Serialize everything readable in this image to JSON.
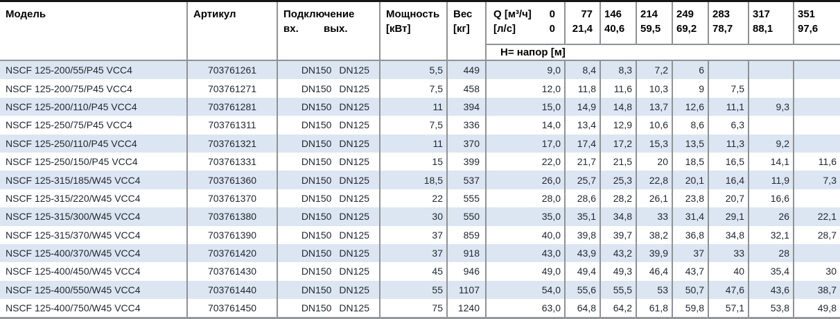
{
  "table": {
    "header": {
      "model": "Модель",
      "article": "Артикул",
      "connection": "Подключение",
      "conn_in": "вх.",
      "conn_out": "вых.",
      "power_line1": "Мощность",
      "power_line2": "[кВт]",
      "weight_line1": "Вес",
      "weight_line2": "[кг]",
      "q_label": "Q [м³/ч]",
      "q_zero": "0",
      "ls_label": "[л/с]",
      "ls_zero": "0",
      "flow_m3h": [
        "77",
        "146",
        "214",
        "249",
        "283",
        "317",
        "351"
      ],
      "flow_ls": [
        "21,4",
        "40,6",
        "59,5",
        "69,2",
        "78,7",
        "88,1",
        "97,6"
      ],
      "head_label": "Н= напор [м]"
    },
    "rows": [
      {
        "model": "NSCF 125-200/55/P45 VCC4",
        "article": "703761261",
        "dn_in": "DN150",
        "dn_out": "DN125",
        "power": "5,5",
        "weight": "449",
        "heads": [
          "9,0",
          "8,4",
          "8,3",
          "7,2",
          "6",
          "",
          "",
          ""
        ]
      },
      {
        "model": "NSCF 125-200/75/P45 VCC4",
        "article": "703761271",
        "dn_in": "DN150",
        "dn_out": "DN125",
        "power": "7,5",
        "weight": "458",
        "heads": [
          "12,0",
          "11,8",
          "11,6",
          "10,3",
          "9",
          "7,5",
          "",
          ""
        ]
      },
      {
        "model": "NSCF 125-200/110/P45 VCC4",
        "article": "703761281",
        "dn_in": "DN150",
        "dn_out": "DN125",
        "power": "11",
        "weight": "394",
        "heads": [
          "15,0",
          "14,9",
          "14,8",
          "13,7",
          "12,6",
          "11,1",
          "9,3",
          ""
        ]
      },
      {
        "model": "NSCF 125-250/75/P45 VCC4",
        "article": "703761311",
        "dn_in": "DN150",
        "dn_out": "DN125",
        "power": "7,5",
        "weight": "336",
        "heads": [
          "14,0",
          "13,4",
          "12,9",
          "10,6",
          "8,6",
          "6,3",
          "",
          ""
        ]
      },
      {
        "model": "NSCF 125-250/110/P45 VCC4",
        "article": "703761321",
        "dn_in": "DN150",
        "dn_out": "DN125",
        "power": "11",
        "weight": "370",
        "heads": [
          "17,0",
          "17,4",
          "17,2",
          "15,3",
          "13,5",
          "11,3",
          "9,2",
          ""
        ]
      },
      {
        "model": "NSCF 125-250/150/P45 VCC4",
        "article": "703761331",
        "dn_in": "DN150",
        "dn_out": "DN125",
        "power": "15",
        "weight": "399",
        "heads": [
          "22,0",
          "21,7",
          "21,5",
          "20",
          "18,5",
          "16,5",
          "14,1",
          "11,6"
        ]
      },
      {
        "model": "NSCF 125-315/185/W45 VCC4",
        "article": "703761360",
        "dn_in": "DN150",
        "dn_out": "DN125",
        "power": "18,5",
        "weight": "537",
        "heads": [
          "26,0",
          "25,7",
          "25,3",
          "22,8",
          "20,1",
          "16,4",
          "11,9",
          "7,3"
        ]
      },
      {
        "model": "NSCF 125-315/220/W45 VCC4",
        "article": "703761370",
        "dn_in": "DN150",
        "dn_out": "DN125",
        "power": "22",
        "weight": "555",
        "heads": [
          "28,0",
          "28,6",
          "28,2",
          "26,1",
          "23,8",
          "20,7",
          "16,6",
          ""
        ]
      },
      {
        "model": "NSCF 125-315/300/W45 VCC4",
        "article": "703761380",
        "dn_in": "DN150",
        "dn_out": "DN125",
        "power": "30",
        "weight": "550",
        "heads": [
          "35,0",
          "35,1",
          "34,8",
          "33",
          "31,4",
          "29,1",
          "26",
          "22,1"
        ]
      },
      {
        "model": "NSCF 125-315/370/W45 VCC4",
        "article": "703761390",
        "dn_in": "DN150",
        "dn_out": "DN125",
        "power": "37",
        "weight": "859",
        "heads": [
          "40,0",
          "39,8",
          "39,7",
          "38,2",
          "36,8",
          "34,8",
          "32,1",
          "28,7"
        ]
      },
      {
        "model": "NSCF 125-400/370/W45 VCC4",
        "article": "703761420",
        "dn_in": "DN150",
        "dn_out": "DN125",
        "power": "37",
        "weight": "918",
        "heads": [
          "43,0",
          "43,9",
          "43,2",
          "39,9",
          "37",
          "33",
          "28",
          ""
        ]
      },
      {
        "model": "NSCF 125-400/450/W45 VCC4",
        "article": "703761430",
        "dn_in": "DN150",
        "dn_out": "DN125",
        "power": "45",
        "weight": "946",
        "heads": [
          "49,0",
          "49,4",
          "49,3",
          "46,4",
          "43,7",
          "40",
          "35,4",
          "30"
        ]
      },
      {
        "model": "NSCF 125-400/550/W45 VCC4",
        "article": "703761440",
        "dn_in": "DN150",
        "dn_out": "DN125",
        "power": "55",
        "weight": "1107",
        "heads": [
          "54,0",
          "55,6",
          "55,5",
          "53",
          "50,7",
          "47,6",
          "43,6",
          "38,7"
        ]
      },
      {
        "model": "NSCF 125-400/750/W45 VCC4",
        "article": "703761450",
        "dn_in": "DN150",
        "dn_out": "DN125",
        "power": "75",
        "weight": "1240",
        "heads": [
          "63,0",
          "64,8",
          "64,2",
          "61,8",
          "59,8",
          "57,1",
          "53,8",
          "49,8"
        ]
      }
    ]
  },
  "colors": {
    "row_alt": "#dce6f2",
    "grid_border": "#8f9294",
    "top_border": "#161616",
    "bottom_border": "#95989a",
    "text": "#1f262e"
  }
}
